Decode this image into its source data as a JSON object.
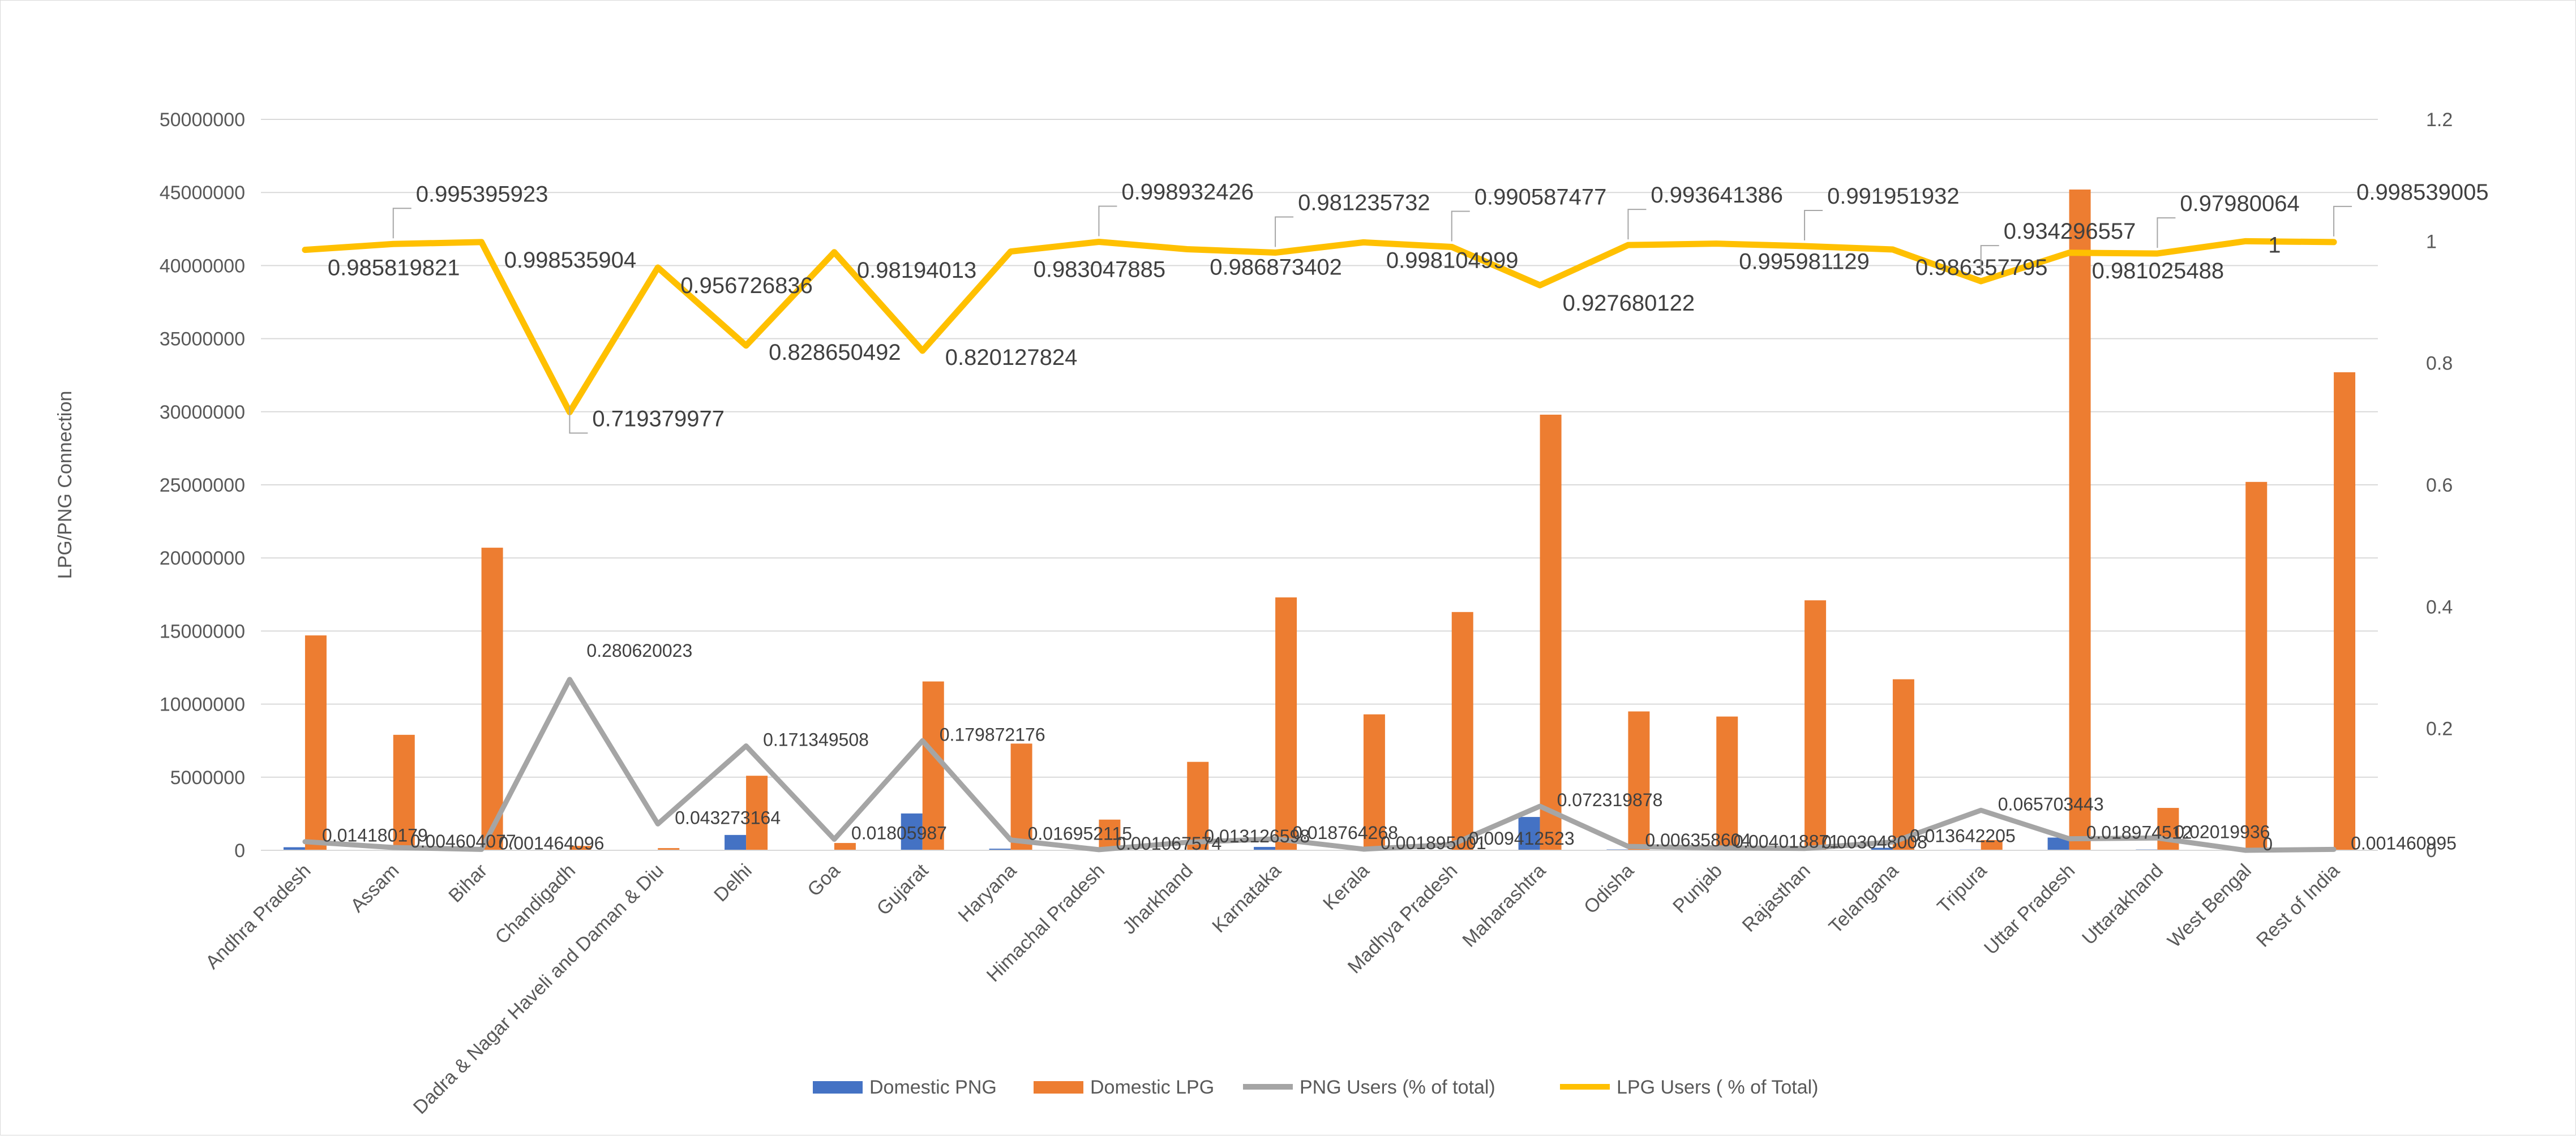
{
  "chart_data": {
    "type": "bar",
    "title": "",
    "ylabel": "LPG/PNG Connection",
    "y2label": "",
    "ylim": [
      0,
      50000000
    ],
    "y2lim": [
      0,
      1.2
    ],
    "ytick_labels": [
      "0",
      "5000000",
      "10000000",
      "15000000",
      "20000000",
      "25000000",
      "30000000",
      "35000000",
      "40000000",
      "45000000",
      "50000000"
    ],
    "y2tick_labels": [
      "0",
      "0.2",
      "0.4",
      "0.6",
      "0.8",
      "1",
      "1.2"
    ],
    "grid": true,
    "legend_position": "bottom",
    "categories": [
      "Andhra Pradesh",
      "Assam",
      "Bihar",
      "Chandigadh",
      "Dadra & Nagar Haveli and Daman & Diu",
      "Delhi",
      "Goa",
      "Gujarat",
      "Haryana",
      "Himachal Pradesh",
      "Jharkhand",
      "Karnataka",
      "Kerala",
      "Madhya Pradesh",
      "Maharashtra",
      "Odisha",
      "Punjab",
      "Rajasthan",
      "Telangana",
      "Tripura",
      "Uttar Pradesh",
      "Uttarakhand",
      "West Bengal",
      "Rest of India"
    ],
    "series": [
      {
        "name": "Domestic PNG",
        "kind": "bar",
        "axis": "left",
        "color": "#4472C4",
        "values": [
          210000,
          37000,
          24000,
          5000,
          15000,
          1050000,
          6000,
          2520000,
          110000,
          3500,
          6000,
          230000,
          17000,
          30000,
          2280000,
          60000,
          37000,
          52000,
          170000,
          50000,
          870000,
          55000,
          45000,
          48000
        ]
      },
      {
        "name": "Domestic LPG",
        "kind": "bar",
        "axis": "left",
        "color": "#ED7D31",
        "values": [
          14700000,
          7900000,
          20700000,
          300000,
          150000,
          5100000,
          500000,
          11550000,
          7300000,
          2100000,
          6050000,
          17300000,
          9300000,
          16300000,
          29800000,
          9500000,
          9150000,
          17100000,
          11700000,
          700000,
          45200000,
          2900000,
          25200000,
          32700000
        ]
      },
      {
        "name": "PNG Users (% of total)",
        "kind": "line",
        "axis": "right",
        "color": "#A5A5A5",
        "values": [
          0.014180179,
          0.004604077,
          0.001464096,
          0.280620023,
          0.043273164,
          0.171349508,
          0.01805987,
          0.179872176,
          0.016952115,
          0.001067574,
          0.013126598,
          0.018764268,
          0.001895001,
          0.009412523,
          0.072319878,
          0.006358604,
          0.004018871,
          0.003048008,
          0.013642205,
          0.065703443,
          0.018974512,
          0.02019936,
          0,
          0.001460995
        ],
        "labels": [
          "0.014180179",
          "0.004604077",
          "0.001464096",
          "0.280620023",
          "0.043273164",
          "0.171349508",
          "0.01805987",
          "0.179872176",
          "0.016952115",
          "0.001067574",
          "0.013126598",
          "0.018764268",
          "0.001895001",
          "0.009412523",
          "0.072319878",
          "0.006358604",
          "0.004018871",
          "0.003048008",
          "0.013642205",
          "0.065703443",
          "0.018974512",
          "0.02019936",
          "0",
          "0.001460995"
        ]
      },
      {
        "name": "LPG Users ( % of Total)",
        "kind": "line",
        "axis": "right",
        "color": "#FFC000",
        "values": [
          0.985819821,
          0.995395923,
          0.998535904,
          0.719379977,
          0.956726836,
          0.828650492,
          0.98194013,
          0.820127824,
          0.983047885,
          0.998932426,
          0.986873402,
          0.981235732,
          0.998104999,
          0.990587477,
          0.927680122,
          0.993641386,
          0.995981129,
          0.991951932,
          0.986357795,
          0.934296557,
          0.981025488,
          0.97980064,
          1,
          0.998539005
        ],
        "labels": [
          "0.985819821",
          "0.995395923",
          "0.998535904",
          "0.719379977",
          "0.956726836",
          "0.828650492",
          "0.98194013",
          "0.820127824",
          "0.983047885",
          "0.998932426",
          "0.986873402",
          "0.981235732",
          "0.998104999",
          "0.990587477",
          "0.927680122",
          "0.993641386",
          "0.995981129",
          "0.991951932",
          "0.986357795",
          "0.934296557",
          "0.981025488",
          "0.97980064",
          "1",
          "0.998539005"
        ]
      }
    ]
  }
}
